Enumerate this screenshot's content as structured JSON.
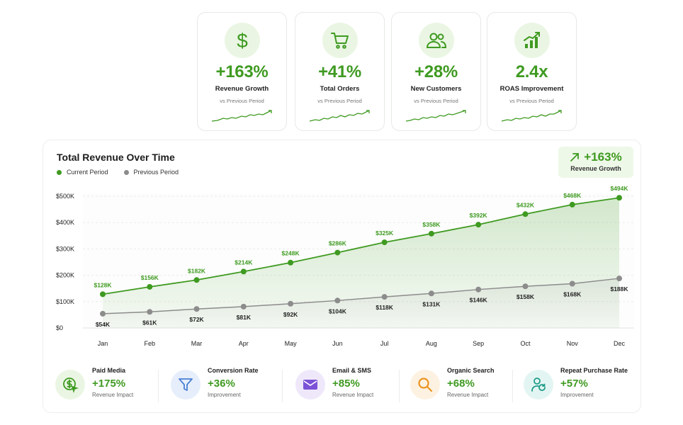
{
  "kpis": [
    {
      "icon": "dollar-icon",
      "value": "+163%",
      "label": "Revenue Growth",
      "sub": "vs Previous Period"
    },
    {
      "icon": "cart-icon",
      "value": "+41%",
      "label": "Total Orders",
      "sub": "vs Previous Period"
    },
    {
      "icon": "users-icon",
      "value": "+28%",
      "label": "New Customers",
      "sub": "vs Previous Period"
    },
    {
      "icon": "growth-bars-icon",
      "value": "2.4x",
      "label": "ROAS Improvement",
      "sub": "vs Previous Period"
    }
  ],
  "badge": {
    "value": "+163%",
    "label": "Revenue Growth"
  },
  "colors": {
    "accent": "#3f9a21",
    "previous": "#8c8c8c"
  },
  "chart_data": {
    "type": "line",
    "title": "Total Revenue Over Time",
    "categories": [
      "Jan",
      "Feb",
      "Mar",
      "Apr",
      "May",
      "Jun",
      "Jul",
      "Aug",
      "Sep",
      "Oct",
      "Nov",
      "Dec"
    ],
    "ylim": [
      0,
      500
    ],
    "yticks": [
      0,
      100,
      200,
      300,
      400,
      500
    ],
    "ytick_labels": [
      "$0",
      "$100K",
      "$200K",
      "$300K",
      "$400K",
      "$500K"
    ],
    "legend_placement": "top-left",
    "grid": "horizontal-dashed",
    "series": [
      {
        "name": "Current Period",
        "color": "#3f9a21",
        "values": [
          128,
          156,
          182,
          214,
          248,
          286,
          325,
          358,
          392,
          432,
          468,
          494
        ],
        "labels": [
          "$128K",
          "$156K",
          "$182K",
          "$214K",
          "$248K",
          "$286K",
          "$325K",
          "$358K",
          "$392K",
          "$432K",
          "$468K",
          "$494K"
        ]
      },
      {
        "name": "Previous Period",
        "color": "#8c8c8c",
        "values": [
          54,
          61,
          72,
          81,
          92,
          104,
          118,
          131,
          146,
          158,
          168,
          188
        ],
        "labels": [
          "$54K",
          "$61K",
          "$72K",
          "$81K",
          "$92K",
          "$104K",
          "$118K",
          "$131K",
          "$146K",
          "$158K",
          "$168K",
          "$188K"
        ]
      }
    ]
  },
  "metrics": [
    {
      "icon": "dollar-cursor-icon",
      "name": "Paid Media",
      "value": "+175%",
      "sub": "Revenue Impact",
      "bg": "#eaf6e3",
      "fg": "#3f9a21"
    },
    {
      "icon": "funnel-icon",
      "name": "Conversion Rate",
      "value": "+36%",
      "sub": "Improvement",
      "bg": "#e6eefb",
      "fg": "#4a7fd4"
    },
    {
      "icon": "mail-icon",
      "name": "Email & SMS",
      "value": "+85%",
      "sub": "Revenue Impact",
      "bg": "#efe8fb",
      "fg": "#7b52d6"
    },
    {
      "icon": "magnifier-icon",
      "name": "Organic Search",
      "value": "+68%",
      "sub": "Revenue Impact",
      "bg": "#fdf1e2",
      "fg": "#ec9420"
    },
    {
      "icon": "user-refresh-icon",
      "name": "Repeat Purchase Rate",
      "value": "+57%",
      "sub": "Improvement",
      "bg": "#e3f5f2",
      "fg": "#1f9c88"
    }
  ]
}
